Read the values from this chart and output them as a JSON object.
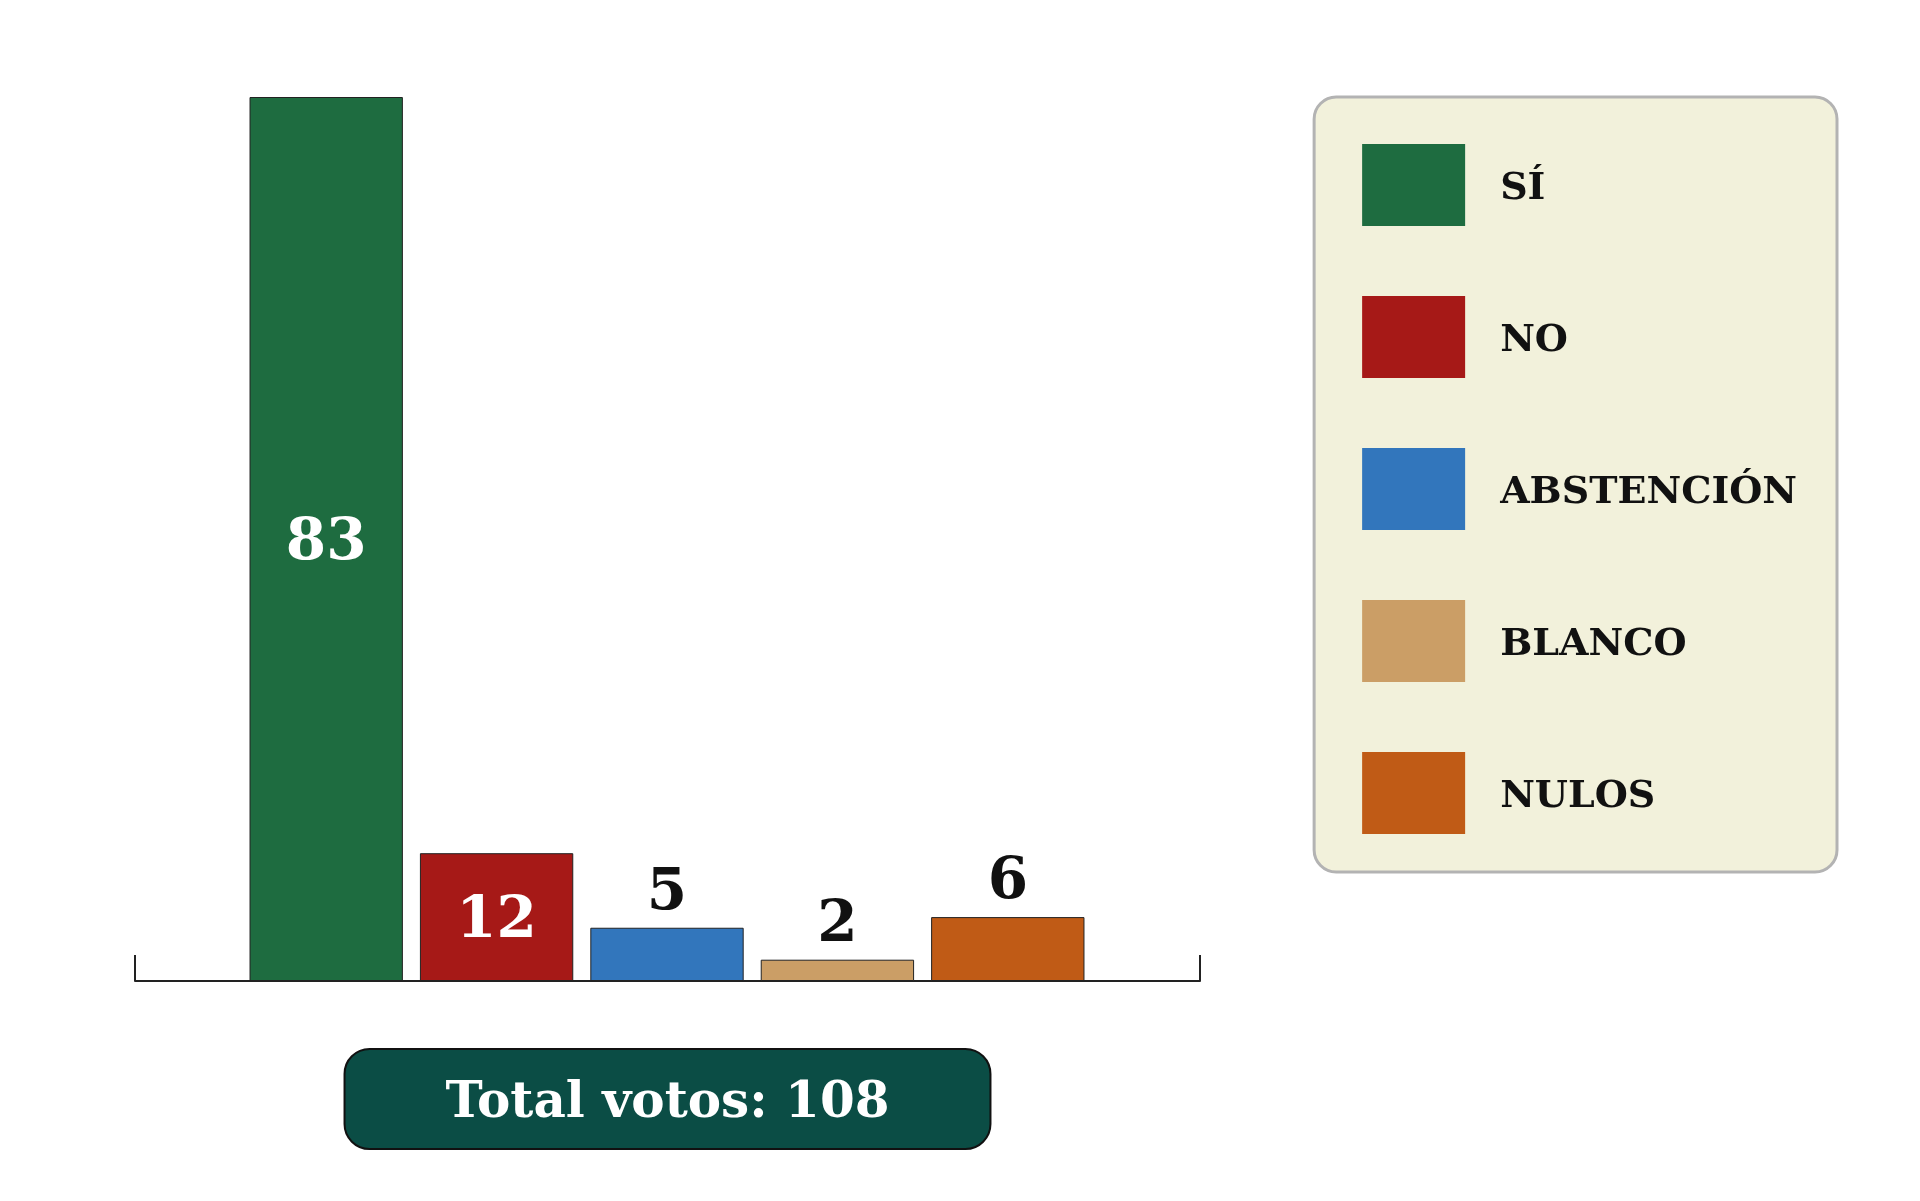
{
  "chart_data": {
    "type": "bar",
    "categories": [
      null,
      null,
      null,
      null,
      null
    ],
    "series": [
      {
        "name": "SÍ",
        "color": "#1e6c40",
        "values": [
          83,
          null,
          null,
          null,
          null
        ]
      },
      {
        "name": "NO",
        "color": "#a61917",
        "values": [
          null,
          12,
          null,
          null,
          null
        ]
      },
      {
        "name": "ABSTENCIÓN",
        "color": "#3276bc",
        "values": [
          null,
          null,
          5,
          null,
          null
        ]
      },
      {
        "name": "BLANCO",
        "color": "#cb9e66",
        "values": [
          null,
          null,
          null,
          2,
          null
        ]
      },
      {
        "name": "NULOS",
        "color": "#c05b16",
        "values": [
          null,
          null,
          null,
          null,
          6
        ]
      }
    ],
    "stacked": true,
    "data_labels": true,
    "legend": "top right",
    "annotations": [
      "Total votos: 108"
    ]
  }
}
